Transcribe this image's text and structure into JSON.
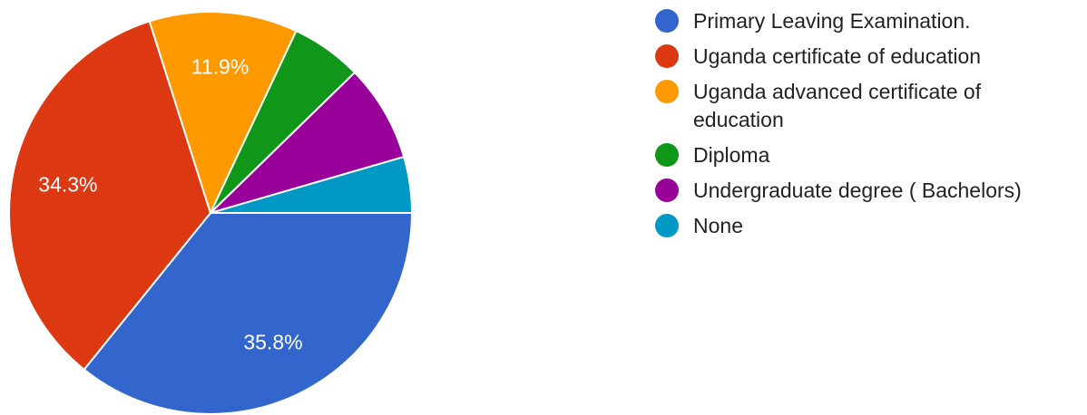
{
  "chart_data": {
    "type": "pie",
    "categories": [
      "Primary Leaving Examination.",
      "Uganda certificate of education",
      "Uganda advanced certificate of education",
      "Diploma",
      "Undergraduate degree ( Bachelors)",
      "None"
    ],
    "values": [
      35.8,
      34.3,
      11.9,
      5.7,
      7.8,
      4.5
    ],
    "value_labels": [
      "35.8%",
      "34.3%",
      "11.9%",
      null,
      null,
      null
    ],
    "colors": [
      "#3366cc",
      "#dc3912",
      "#ff9900",
      "#109618",
      "#990099",
      "#0099c6"
    ]
  }
}
